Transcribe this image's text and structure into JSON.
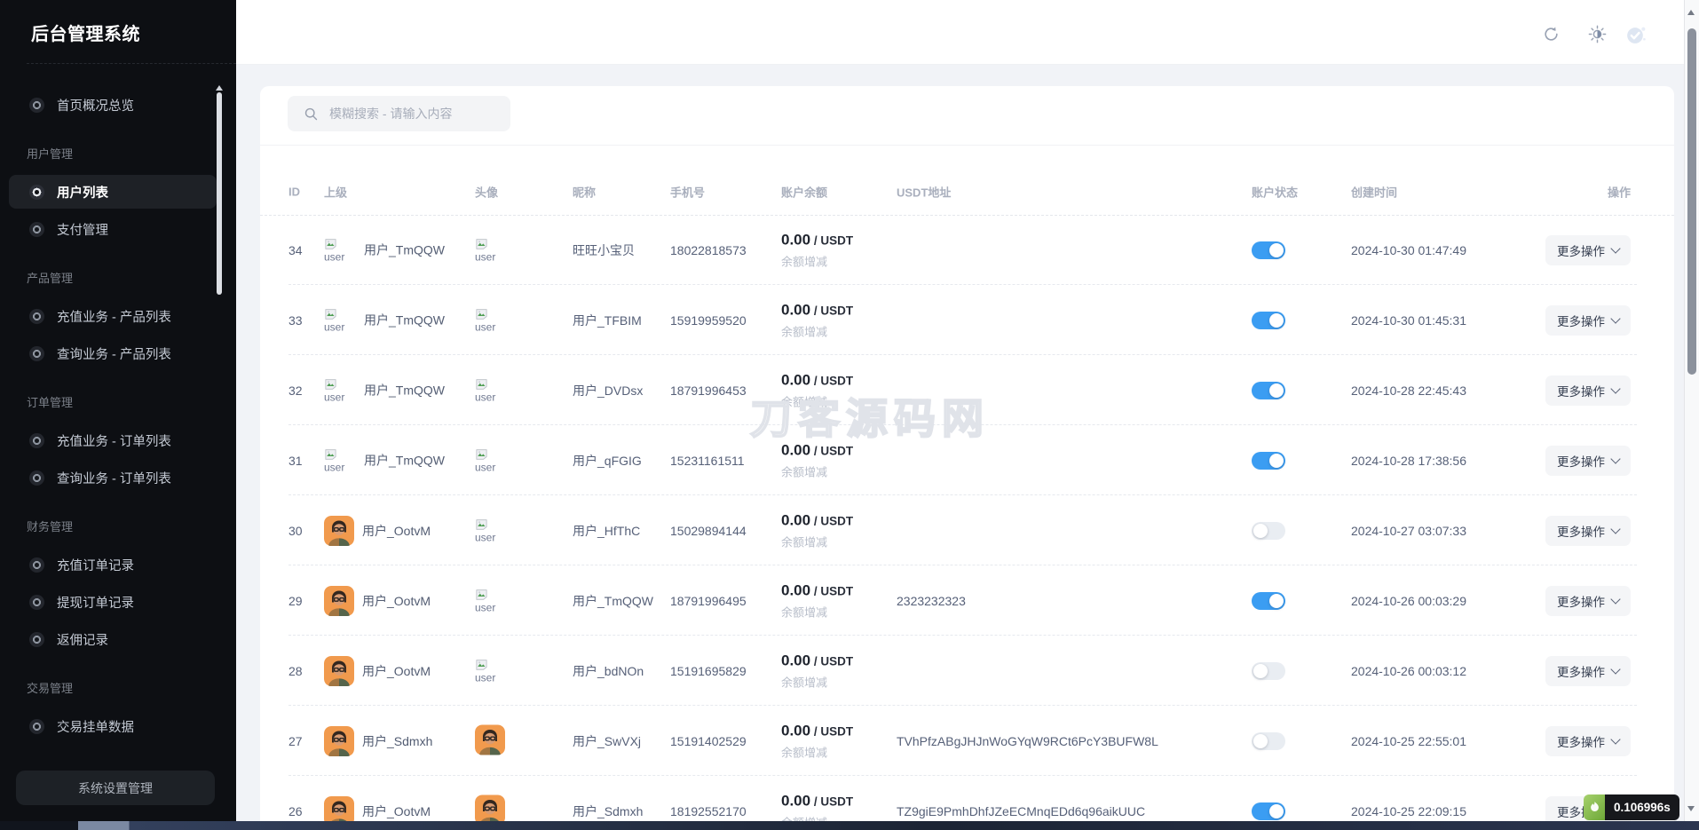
{
  "app": {
    "title": "后台管理系统"
  },
  "sidebar": {
    "sections": [
      {
        "label": "",
        "items": [
          {
            "label": "首页概况总览",
            "active": false
          }
        ]
      },
      {
        "label": "用户管理",
        "items": [
          {
            "label": "用户列表",
            "active": true
          },
          {
            "label": "支付管理",
            "active": false
          }
        ]
      },
      {
        "label": "产品管理",
        "items": [
          {
            "label": "充值业务 - 产品列表",
            "active": false
          },
          {
            "label": "查询业务 - 产品列表",
            "active": false
          }
        ]
      },
      {
        "label": "订单管理",
        "items": [
          {
            "label": "充值业务 - 订单列表",
            "active": false
          },
          {
            "label": "查询业务 - 订单列表",
            "active": false
          }
        ]
      },
      {
        "label": "财务管理",
        "items": [
          {
            "label": "充值订单记录",
            "active": false
          },
          {
            "label": "提现订单记录",
            "active": false
          },
          {
            "label": "返佣记录",
            "active": false
          }
        ]
      },
      {
        "label": "交易管理",
        "items": [
          {
            "label": "交易挂单数据",
            "active": false
          }
        ]
      }
    ],
    "settings_button": "系统设置管理"
  },
  "header": {
    "icons": [
      {
        "name": "refresh-icon"
      },
      {
        "name": "theme-toggle-icon"
      },
      {
        "name": "success-badge-icon"
      }
    ]
  },
  "search": {
    "placeholder": "模糊搜索 - 请输入内容",
    "icon": "search-icon"
  },
  "table": {
    "columns": [
      "ID",
      "上级",
      "头像",
      "昵称",
      "手机号",
      "账户余额",
      "USDT地址",
      "账户状态",
      "创建时间",
      "操作"
    ],
    "balance_suffix": "/ USDT",
    "balance_link_label": "余额增减",
    "action_button_label": "更多操作",
    "broken_image_alt": "user",
    "rows": [
      {
        "id": "34",
        "parent": "用户_TmQQW",
        "parent_avatar": "broken",
        "avatar": "broken",
        "nickname": "旺旺小宝贝",
        "phone": "18022818573",
        "balance": "0.00",
        "usdt": "",
        "status": true,
        "created": "2024-10-30 01:47:49"
      },
      {
        "id": "33",
        "parent": "用户_TmQQW",
        "parent_avatar": "broken",
        "avatar": "broken",
        "nickname": "用户_TFBIM",
        "phone": "15919959520",
        "balance": "0.00",
        "usdt": "",
        "status": true,
        "created": "2024-10-30 01:45:31"
      },
      {
        "id": "32",
        "parent": "用户_TmQQW",
        "parent_avatar": "broken",
        "avatar": "broken",
        "nickname": "用户_DVDsx",
        "phone": "18791996453",
        "balance": "0.00",
        "usdt": "",
        "status": true,
        "created": "2024-10-28 22:45:43"
      },
      {
        "id": "31",
        "parent": "用户_TmQQW",
        "parent_avatar": "broken",
        "avatar": "broken",
        "nickname": "用户_qFGIG",
        "phone": "15231161511",
        "balance": "0.00",
        "usdt": "",
        "status": true,
        "created": "2024-10-28 17:38:56"
      },
      {
        "id": "30",
        "parent": "用户_OotvM",
        "parent_avatar": "photo",
        "avatar": "broken",
        "nickname": "用户_HfThC",
        "phone": "15029894144",
        "balance": "0.00",
        "usdt": "",
        "status": false,
        "created": "2024-10-27 03:07:33"
      },
      {
        "id": "29",
        "parent": "用户_OotvM",
        "parent_avatar": "photo",
        "avatar": "broken",
        "nickname": "用户_TmQQW",
        "phone": "18791996495",
        "balance": "0.00",
        "usdt": "2323232323",
        "status": true,
        "created": "2024-10-26 00:03:29"
      },
      {
        "id": "28",
        "parent": "用户_OotvM",
        "parent_avatar": "photo",
        "avatar": "broken",
        "nickname": "用户_bdNOn",
        "phone": "15191695829",
        "balance": "0.00",
        "usdt": "",
        "status": false,
        "created": "2024-10-26 00:03:12"
      },
      {
        "id": "27",
        "parent": "用户_Sdmxh",
        "parent_avatar": "photo",
        "avatar": "photo",
        "nickname": "用户_SwVXj",
        "phone": "15191402529",
        "balance": "0.00",
        "usdt": "TVhPfzABgJHJnWoGYqW9RCt6PcY3BUFW8L",
        "status": false,
        "created": "2024-10-25 22:55:01"
      },
      {
        "id": "26",
        "parent": "用户_OotvM",
        "parent_avatar": "photo",
        "avatar": "photo",
        "nickname": "用户_Sdmxh",
        "phone": "18192552170",
        "balance": "0.00",
        "usdt": "TZ9giE9PmhDhfJZeECMnqEDd6q96aikUUC",
        "status": true,
        "created": "2024-10-25 22:09:15"
      }
    ]
  },
  "watermark": "刀客源码网",
  "debug_badge": {
    "duration": "0.106996s"
  },
  "colors": {
    "accent_blue": "#3b9df2",
    "toggle_off": "#e9edf2",
    "sidebar_bg": "#0d0f13",
    "badge_green": "#6ea838",
    "badge_dark": "#17181c",
    "avatar_orange": "#f19a4d"
  }
}
